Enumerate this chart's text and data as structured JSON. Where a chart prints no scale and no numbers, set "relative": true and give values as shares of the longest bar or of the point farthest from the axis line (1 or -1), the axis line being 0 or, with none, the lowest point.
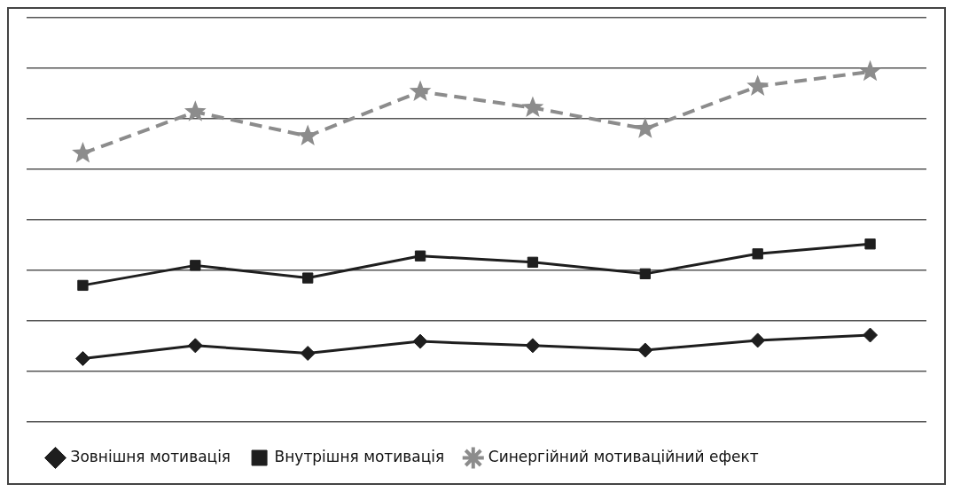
{
  "chart_data": {
    "type": "line",
    "relative": true,
    "categories": [
      null,
      null,
      null,
      null,
      null,
      null,
      null,
      null
    ],
    "series": [
      {
        "name": "Зовнішня мотивація",
        "color": "#1e1e1e",
        "marker": "diamond",
        "line_style": "solid",
        "values": [
          0.181,
          0.218,
          0.196,
          0.23,
          0.218,
          0.205,
          0.233,
          0.248
        ]
      },
      {
        "name": "Внутрішня мотивація",
        "color": "#1e1e1e",
        "marker": "square",
        "line_style": "solid",
        "values": [
          0.39,
          0.447,
          0.411,
          0.474,
          0.456,
          0.423,
          0.48,
          0.508
        ]
      },
      {
        "name": "Синергійний мотиваційний ефект",
        "color": "#8c8c8c",
        "marker": "star",
        "line_style": "dashed",
        "values": [
          0.767,
          0.885,
          0.816,
          0.943,
          0.897,
          0.837,
          0.958,
          1
        ]
      }
    ],
    "grid": "y",
    "legend": "bottom"
  }
}
